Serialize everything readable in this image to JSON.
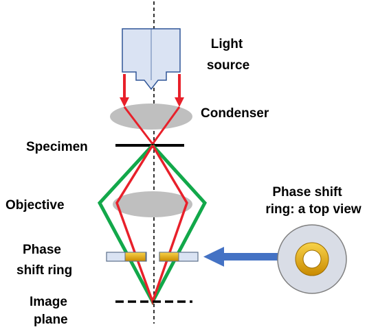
{
  "labels": {
    "light_source_line1": "Light",
    "light_source_line2": "source",
    "condenser": "Condenser",
    "specimen": "Specimen",
    "objective": "Objective",
    "phase_ring_line1": "Phase",
    "phase_ring_line2": "shift ring",
    "image_plane_line1": "Image",
    "image_plane_line2": "plane",
    "top_view_line1": "Phase shift",
    "top_view_line2": "ring: a top view"
  },
  "colors": {
    "light_box_fill": "#dae3f3",
    "light_box_stroke": "#2f5597",
    "ray_red": "#e8202a",
    "ray_green": "#12a84a",
    "lens_gray": "#bfbfbf",
    "ring_plate": "#dae3f3",
    "ring_plate_stroke": "#5b6f8a",
    "ring_gold": "#f5b400",
    "top_view_disc": "#d9dde6",
    "top_view_disc_stroke": "#7f7f7f",
    "pointer_arrow": "#4472c4",
    "axis_line": "#000000"
  },
  "icons": {
    "light_source": "light-source-arrow-icon",
    "pointer": "left-arrow-icon"
  }
}
